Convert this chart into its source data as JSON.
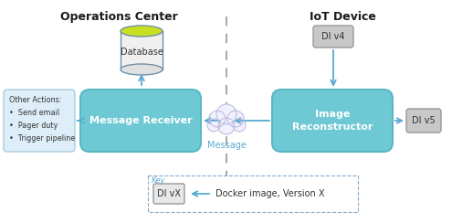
{
  "title_left": "Operations Center",
  "title_right": "IoT Device",
  "bg_color": "#ffffff",
  "box_cyan_color": "#6ec9d4",
  "box_cyan_edge": "#5ab8c4",
  "box_gray_color": "#c8c8c8",
  "box_gray_edge": "#999999",
  "box_lightblue_color": "#ddeef8",
  "box_lightblue_edge": "#aaccdd",
  "arrow_color": "#5baad0",
  "dashed_line_color": "#aaaaaa",
  "database_body": "#e0e0e0",
  "database_body2": "#f0f0f0",
  "database_top": "#c8e020",
  "database_edge": "#7090a8",
  "cloud_fill": "#f0f0ff",
  "cloud_edge": "#b8b8d8",
  "key_box_edge": "#88aacc",
  "msg_receiver_label": "Message Receiver",
  "img_reconstructor_label": "Image\nReconstructor",
  "di_v4_label": "DI v4",
  "di_v5_label": "DI v5",
  "di_vx_label": "DI vX",
  "message_label": "Message",
  "other_actions_text": "Other Actions:\n•  Send email\n•  Pager duty\n•  Trigger pipeline",
  "key_label": "Key",
  "docker_label": "Docker image, Version X",
  "title_fontsize": 9,
  "label_fontsize": 8,
  "small_fontsize": 7
}
